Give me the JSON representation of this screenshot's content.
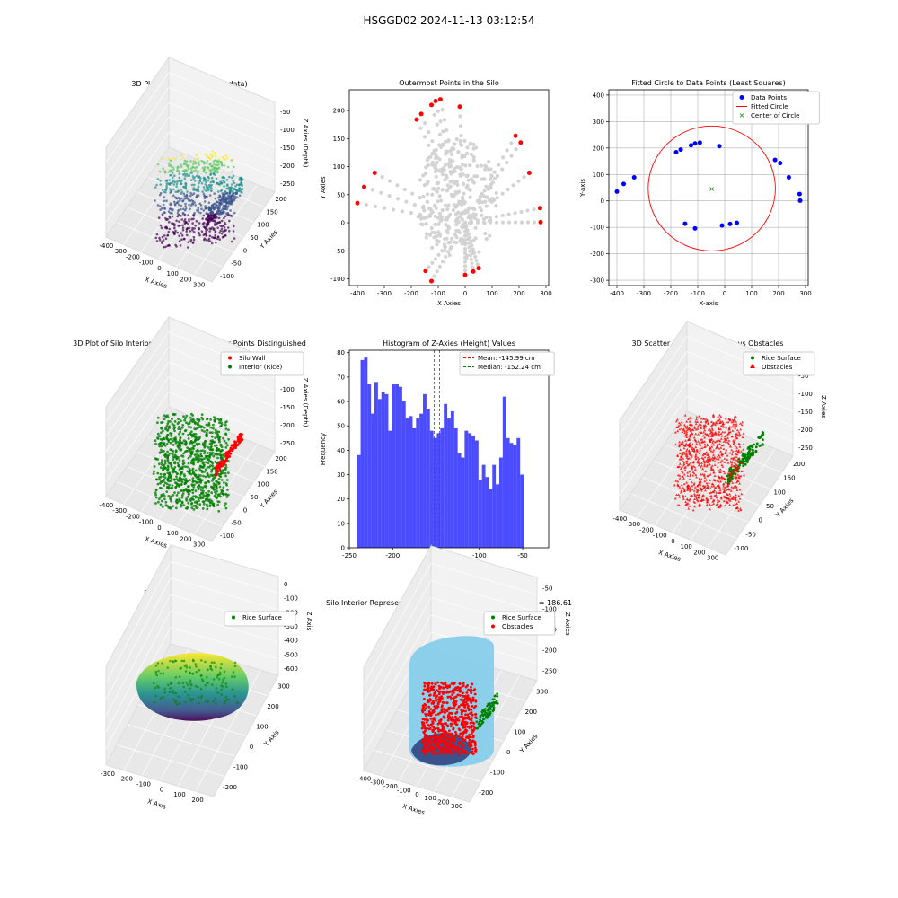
{
  "figure": {
    "title": "HSGGD02 2024-11-13 03:12:54"
  },
  "chart_data": [
    {
      "id": "p1",
      "type": "scatter3d",
      "title": "3D Plot of Silo Interior(row data)",
      "xlabel": "X Axies",
      "ylabel": "Y Axies",
      "zlabel": "Z Axies (Depth)",
      "xticks": [
        -400,
        -300,
        -200,
        -100,
        0,
        100,
        200,
        300
      ],
      "yticks": [
        -100,
        -50,
        0,
        50,
        100,
        150,
        200
      ],
      "zticks": [
        -250,
        -200,
        -150,
        -100,
        -50
      ],
      "colormap": "viridis",
      "colors": {
        "low": "#440154",
        "mid": "#21908d",
        "high": "#fde725"
      }
    },
    {
      "id": "p2",
      "type": "scatter",
      "title": "Outermost Points in the Silo",
      "xlabel": "X Axies",
      "ylabel": "Y Axies",
      "xlim": [
        -430,
        310
      ],
      "ylim": [
        -112,
        237
      ],
      "xticks": [
        -400,
        -300,
        -200,
        -100,
        0,
        100,
        200,
        300
      ],
      "yticks": [
        -100,
        -50,
        0,
        50,
        100,
        150,
        200
      ],
      "colors": {
        "all": "#d3d3d3",
        "outer": "#ff0000"
      },
      "outermost_points": [
        [
          -400,
          35
        ],
        [
          -375,
          64
        ],
        [
          -336,
          89
        ],
        [
          -180,
          184
        ],
        [
          -163,
          194
        ],
        [
          -125,
          210
        ],
        [
          -110,
          217
        ],
        [
          -92,
          220
        ],
        [
          -20,
          207
        ],
        [
          -125,
          -104
        ],
        [
          -147,
          -86
        ],
        [
          0,
          -93
        ],
        [
          30,
          -87
        ],
        [
          50,
          -81
        ],
        [
          187,
          155
        ],
        [
          206,
          143
        ],
        [
          238,
          89
        ],
        [
          278,
          26
        ],
        [
          280,
          1
        ]
      ]
    },
    {
      "id": "p3",
      "type": "scatter",
      "title": "Fitted Circle to Data Points (Least Squares)",
      "xlabel": "X-axis",
      "ylabel": "Y-axis",
      "xlim": [
        -430,
        310
      ],
      "ylim": [
        -320,
        420
      ],
      "xticks": [
        -400,
        -300,
        -200,
        -100,
        0,
        100,
        200,
        300
      ],
      "yticks": [
        -300,
        -200,
        -100,
        0,
        100,
        200,
        300,
        400
      ],
      "grid": true,
      "legend": [
        "Data Points",
        "Fitted Circle",
        "Center of Circle"
      ],
      "legend_position": "upper right",
      "circle": {
        "cx": -48,
        "cy": 47,
        "r": 236
      },
      "colors": {
        "points": "#0000ff",
        "circle": "#ff0000",
        "center": "#008000"
      },
      "points": [
        [
          -400,
          35
        ],
        [
          -375,
          64
        ],
        [
          -336,
          89
        ],
        [
          -180,
          184
        ],
        [
          -163,
          194
        ],
        [
          -125,
          210
        ],
        [
          -110,
          217
        ],
        [
          -92,
          220
        ],
        [
          -20,
          207
        ],
        [
          -110,
          -104
        ],
        [
          -147,
          -86
        ],
        [
          -10,
          -93
        ],
        [
          20,
          -87
        ],
        [
          45,
          -83
        ],
        [
          187,
          155
        ],
        [
          206,
          143
        ],
        [
          238,
          89
        ],
        [
          278,
          26
        ],
        [
          280,
          1
        ]
      ]
    },
    {
      "id": "p4",
      "type": "scatter3d",
      "title": "3D Plot of Silo Interior with Wall and Interior Points Distinguished",
      "xlabel": "X Axies",
      "ylabel": "Y Axies",
      "zlabel": "Z Axies (Depth)",
      "xticks": [
        -400,
        -300,
        -200,
        -100,
        0,
        100,
        200,
        300
      ],
      "yticks": [
        -100,
        -50,
        0,
        50,
        100,
        150,
        200
      ],
      "zticks": [
        -250,
        -200,
        -150,
        -100,
        -50
      ],
      "legend": [
        "Silo Wall",
        "Interior (Rice)"
      ],
      "colors": {
        "wall": "#ff0000",
        "interior": "#008000"
      }
    },
    {
      "id": "p5",
      "type": "bar",
      "title": "Histogram of Z-Axies (Height) Values",
      "xlabel": "Height (cm)",
      "ylabel": "Frequency",
      "xlim": [
        -250,
        -20
      ],
      "ylim": [
        0,
        81
      ],
      "xticks": [
        -250,
        -200,
        -150,
        -100,
        -50
      ],
      "yticks": [
        0,
        10,
        20,
        30,
        40,
        50,
        60,
        70,
        80
      ],
      "bin_start": -241,
      "bin_width": 4.0,
      "values": [
        38,
        77,
        78,
        67,
        55,
        68,
        61,
        64,
        63,
        48,
        67,
        67,
        66,
        60,
        53,
        54,
        49,
        53,
        55,
        63,
        57,
        48,
        45,
        47,
        49,
        59,
        53,
        56,
        49,
        39,
        37,
        48,
        47,
        46,
        44,
        28,
        34,
        29,
        24,
        34,
        26,
        37,
        62,
        45,
        43,
        42,
        45,
        30
      ],
      "color": "#0000ff",
      "mean": -145.99,
      "median": -152.24,
      "legend": [
        "Mean: -145.99 cm",
        "Median: -152.24 cm"
      ],
      "legend_position": "upper right"
    },
    {
      "id": "p6",
      "type": "scatter3d",
      "title": "3D Scatter Plot: Rice Surface vs Obstacles",
      "xlabel": "X Axies",
      "ylabel": "Y Axies",
      "zlabel": "Z Axies",
      "xticks": [
        -400,
        -300,
        -200,
        -100,
        0,
        100,
        200,
        300
      ],
      "yticks": [
        -100,
        -50,
        0,
        50,
        100,
        150,
        200
      ],
      "zticks": [
        -250,
        -200,
        -150,
        -100,
        -50
      ],
      "legend": [
        "Rice Surface",
        "Obstacles"
      ],
      "colors": {
        "rice": "#008000",
        "obstacles": "#ff0000"
      }
    },
    {
      "id": "p7",
      "type": "surface3d",
      "title": "Rice Surface Interpolated",
      "subtitle": "depth = 186.61",
      "xlabel": "X Axis",
      "ylabel": "Y Axis",
      "zlabel": "Z Axis",
      "xticks": [
        -300,
        -200,
        -100,
        0,
        100,
        200
      ],
      "yticks": [
        -200,
        -100,
        0,
        100,
        200,
        300
      ],
      "zticks": [
        -600,
        -500,
        -400,
        -300,
        -200,
        -100,
        0
      ],
      "legend": [
        "Rice Surface"
      ]
    },
    {
      "id": "p8",
      "type": "surface3d",
      "title": "Silo Interior Representation using weighted average depth = 186.61",
      "xlabel": "X Axies",
      "ylabel": "Y Axies",
      "zlabel": "Z Axies",
      "xticks": [
        -400,
        -300,
        -200,
        -100,
        0,
        100,
        200,
        300
      ],
      "yticks": [
        -200,
        -100,
        0,
        100,
        200,
        300
      ],
      "zticks": [
        -250,
        -200,
        -150,
        -100,
        -50
      ],
      "legend": [
        "Rice Surface",
        "Obstacles"
      ],
      "colors": {
        "wall": "#87ceeb",
        "rice": "#008000",
        "obstacles": "#ff0000"
      }
    }
  ]
}
